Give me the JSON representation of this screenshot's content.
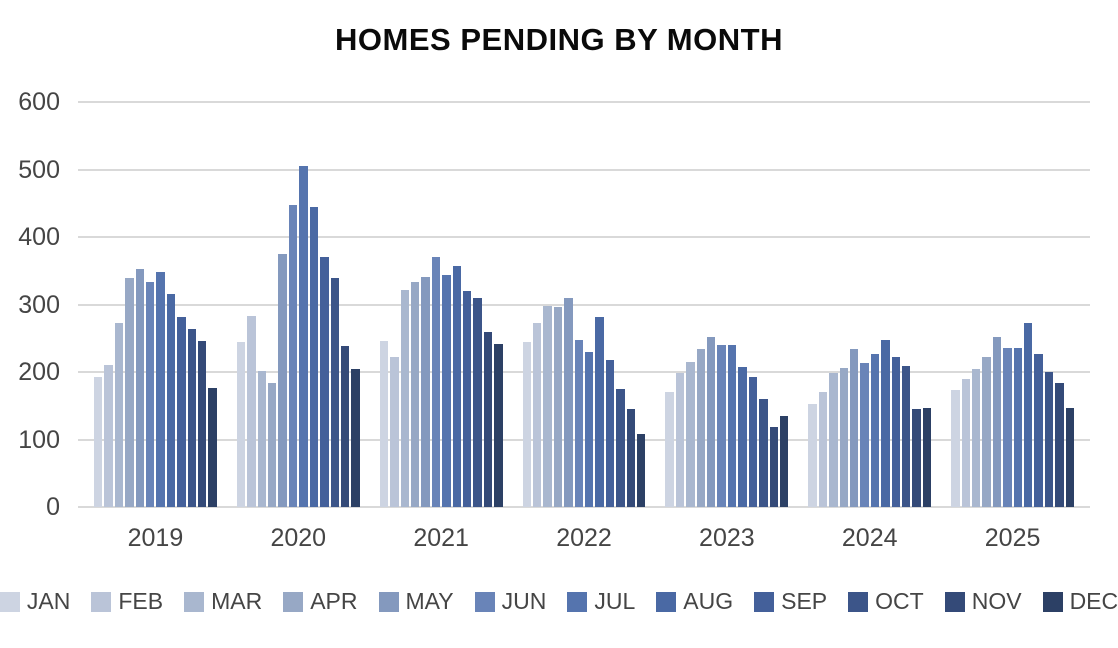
{
  "chart_data": {
    "type": "bar",
    "title": "HOMES PENDING BY MONTH",
    "categories": [
      "2019",
      "2020",
      "2021",
      "2022",
      "2023",
      "2024",
      "2025"
    ],
    "series": [
      {
        "name": "JAN",
        "color": "#cdd4e2",
        "values": [
          193,
          245,
          246,
          245,
          170,
          153,
          173
        ]
      },
      {
        "name": "FEB",
        "color": "#bac4d8",
        "values": [
          210,
          283,
          222,
          273,
          199,
          170,
          190
        ]
      },
      {
        "name": "MAR",
        "color": "#a9b7cf",
        "values": [
          272,
          202,
          322,
          298,
          215,
          199,
          205
        ]
      },
      {
        "name": "APR",
        "color": "#97a8c5",
        "values": [
          340,
          184,
          334,
          296,
          234,
          206,
          222
        ]
      },
      {
        "name": "MAY",
        "color": "#8499be",
        "values": [
          353,
          375,
          341,
          310,
          252,
          234,
          252
        ]
      },
      {
        "name": "JUN",
        "color": "#6984b8",
        "values": [
          333,
          448,
          371,
          248,
          240,
          214,
          235
        ]
      },
      {
        "name": "JUL",
        "color": "#5574ae",
        "values": [
          348,
          505,
          343,
          230,
          240,
          227,
          236
        ]
      },
      {
        "name": "AUG",
        "color": "#4a69a4",
        "values": [
          315,
          445,
          357,
          282,
          207,
          248,
          272
        ]
      },
      {
        "name": "SEP",
        "color": "#44609a",
        "values": [
          282,
          371,
          320,
          218,
          193,
          222,
          227
        ]
      },
      {
        "name": "OCT",
        "color": "#3c5589",
        "values": [
          264,
          339,
          310,
          175,
          160,
          209,
          200
        ]
      },
      {
        "name": "NOV",
        "color": "#344a78",
        "values": [
          246,
          238,
          259,
          145,
          118,
          145,
          184
        ]
      },
      {
        "name": "DEC",
        "color": "#2c4065",
        "values": [
          177,
          205,
          242,
          108,
          135,
          147,
          147
        ]
      }
    ],
    "xlabel": "",
    "ylabel": "",
    "ylim": [
      0,
      600
    ],
    "ytick_step": 100,
    "yticks": [
      "0",
      "100",
      "200",
      "300",
      "400",
      "500",
      "600"
    ],
    "grid": true,
    "legend_position": "bottom",
    "gridline_color": "#d9d9d9",
    "axis_text_color": "#454545"
  }
}
